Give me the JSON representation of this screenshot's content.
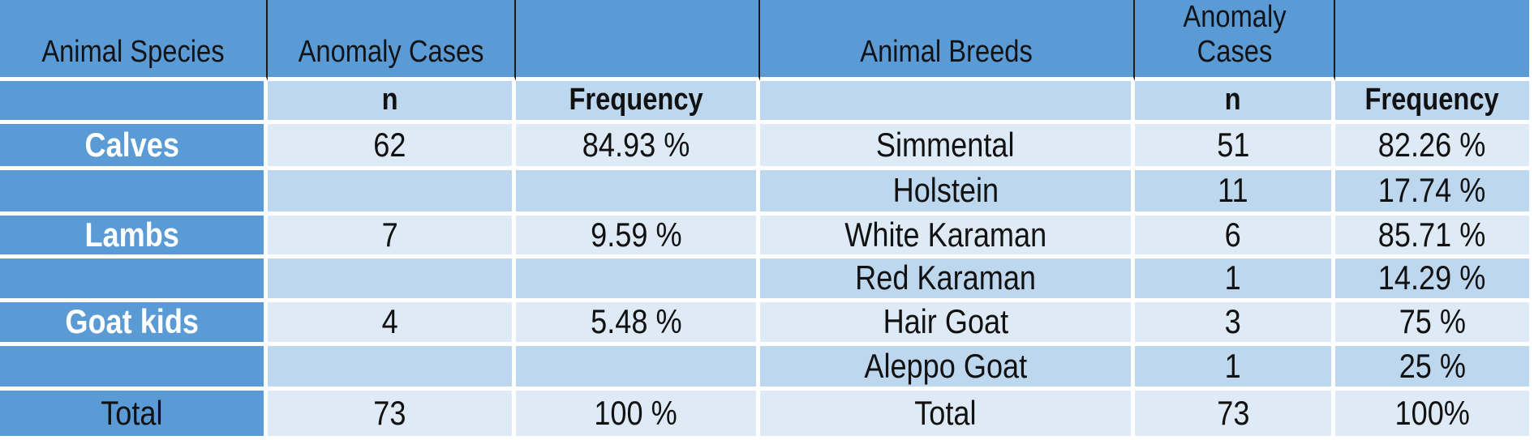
{
  "colors": {
    "header_blue": "#5B9BD5",
    "row_light": "#DEEAF6",
    "row_medium": "#BDD7EE",
    "header_divider_black": "#1A1A1A",
    "gridline_white": "#FFFFFF",
    "species_label_text": "#FFFFFF",
    "body_text": "#111111"
  },
  "table": {
    "rows": [
      {
        "cells": [
          "Animal Species",
          "Anomaly Cases",
          "",
          "Animal Breeds",
          "Anomaly Cases",
          ""
        ]
      },
      {
        "cells": [
          "",
          "n",
          "Frequency",
          "",
          "n",
          "Frequency"
        ]
      },
      {
        "cells": [
          "Calves",
          "62",
          "84.93 %",
          "Simmental",
          "51",
          "82.26 %"
        ]
      },
      {
        "cells": [
          "",
          "",
          "",
          "Holstein",
          "11",
          "17.74 %"
        ]
      },
      {
        "cells": [
          "Lambs",
          "7",
          "9.59 %",
          "White Karaman",
          "6",
          "85.71 %"
        ]
      },
      {
        "cells": [
          "",
          "",
          "",
          "Red Karaman",
          "1",
          "14.29 %"
        ]
      },
      {
        "cells": [
          "Goat kids",
          "4",
          "5.48 %",
          "Hair Goat",
          "3",
          "75 %"
        ]
      },
      {
        "cells": [
          "",
          "",
          "",
          "Aleppo Goat",
          "1",
          "25 %"
        ]
      },
      {
        "cells": [
          "Total",
          "73",
          "100 %",
          "Total",
          "73",
          "100%"
        ]
      }
    ]
  }
}
